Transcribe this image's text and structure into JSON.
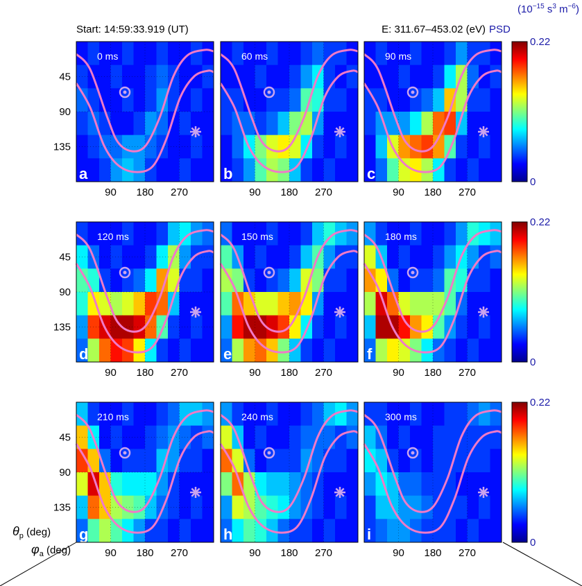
{
  "figure": {
    "start_label": "Start: 14:59:33.919 (UT)",
    "energy_label": "E: 311.67–453.02 (eV)",
    "psd_label": "PSD",
    "units_label": {
      "open": "(10",
      "exp1": "−15",
      "mid": " s",
      "exp2": "3",
      "mid2": " m",
      "exp3": "−6",
      "close": ")"
    },
    "y_axis_label": {
      "symbol": "θ",
      "sub": "p",
      "unit": " (deg)"
    },
    "x_axis_label": {
      "symbol": "φ",
      "sub": "a",
      "unit": " (deg)"
    }
  },
  "chart_data": [
    {
      "type": "heatmap",
      "panel": "a",
      "time": "0 ms",
      "xlim": [
        0,
        360
      ],
      "ylim": [
        0,
        180
      ],
      "xticks": [
        90,
        180,
        270
      ],
      "yticks": [
        45,
        90,
        135
      ],
      "clim": [
        0,
        0.22
      ],
      "cticks": [],
      "z": [
        [
          0.03,
          0.04,
          0.03,
          0.03,
          0.04,
          0.03,
          0.03,
          0.04,
          0.03,
          0.03,
          0.04,
          0.03
        ],
        [
          0.04,
          0.03,
          0.03,
          0.04,
          0.03,
          0.03,
          0.04,
          0.05,
          0.04,
          0.03,
          0.03,
          0.04
        ],
        [
          0.05,
          0.04,
          0.03,
          0.03,
          0.04,
          0.03,
          0.04,
          0.06,
          0.04,
          0.03,
          0.04,
          0.03
        ],
        [
          0.04,
          0.05,
          0.04,
          0.03,
          0.03,
          0.04,
          0.06,
          0.05,
          0.03,
          0.04,
          0.03,
          0.03
        ],
        [
          0.03,
          0.04,
          0.05,
          0.05,
          0.06,
          0.06,
          0.05,
          0.04,
          0.03,
          0.03,
          0.04,
          0.03
        ],
        [
          0.03,
          0.03,
          0.04,
          0.06,
          0.07,
          0.06,
          0.04,
          0.03,
          0.03,
          0.04,
          0.03,
          0.03
        ]
      ]
    },
    {
      "type": "heatmap",
      "panel": "b",
      "time": "60 ms",
      "xlim": [
        0,
        360
      ],
      "ylim": [
        0,
        180
      ],
      "xticks": [
        90,
        180,
        270
      ],
      "yticks": [],
      "clim": [
        0,
        0.22
      ],
      "cticks": [],
      "z": [
        [
          0.03,
          0.04,
          0.03,
          0.03,
          0.04,
          0.03,
          0.03,
          0.04,
          0.05,
          0.04,
          0.04,
          0.03
        ],
        [
          0.03,
          0.03,
          0.03,
          0.04,
          0.03,
          0.03,
          0.04,
          0.06,
          0.08,
          0.04,
          0.03,
          0.04
        ],
        [
          0.04,
          0.04,
          0.03,
          0.03,
          0.04,
          0.04,
          0.05,
          0.1,
          0.09,
          0.04,
          0.04,
          0.03
        ],
        [
          0.04,
          0.05,
          0.05,
          0.04,
          0.05,
          0.07,
          0.11,
          0.12,
          0.06,
          0.03,
          0.03,
          0.03
        ],
        [
          0.03,
          0.05,
          0.08,
          0.11,
          0.13,
          0.14,
          0.13,
          0.08,
          0.04,
          0.03,
          0.04,
          0.03
        ],
        [
          0.03,
          0.04,
          0.06,
          0.1,
          0.12,
          0.11,
          0.07,
          0.04,
          0.03,
          0.04,
          0.03,
          0.03
        ]
      ]
    },
    {
      "type": "heatmap",
      "panel": "c",
      "time": "90 ms",
      "xlim": [
        0,
        360
      ],
      "ylim": [
        0,
        180
      ],
      "xticks": [
        90,
        180,
        270
      ],
      "yticks": [],
      "clim": [
        0,
        0.22
      ],
      "cticks": [
        0,
        0.22
      ],
      "z": [
        [
          0.03,
          0.04,
          0.03,
          0.03,
          0.04,
          0.03,
          0.03,
          0.04,
          0.06,
          0.04,
          0.04,
          0.03
        ],
        [
          0.03,
          0.03,
          0.03,
          0.04,
          0.03,
          0.03,
          0.04,
          0.08,
          0.12,
          0.05,
          0.03,
          0.04
        ],
        [
          0.04,
          0.04,
          0.03,
          0.03,
          0.04,
          0.05,
          0.07,
          0.15,
          0.12,
          0.04,
          0.04,
          0.03
        ],
        [
          0.04,
          0.06,
          0.06,
          0.06,
          0.08,
          0.12,
          0.17,
          0.18,
          0.07,
          0.03,
          0.03,
          0.03
        ],
        [
          0.03,
          0.07,
          0.13,
          0.16,
          0.17,
          0.18,
          0.16,
          0.1,
          0.04,
          0.03,
          0.04,
          0.03
        ],
        [
          0.03,
          0.05,
          0.1,
          0.13,
          0.14,
          0.12,
          0.08,
          0.04,
          0.03,
          0.04,
          0.03,
          0.03
        ]
      ]
    },
    {
      "type": "heatmap",
      "panel": "d",
      "time": "120 ms",
      "xlim": [
        0,
        360
      ],
      "ylim": [
        0,
        180
      ],
      "xticks": [
        90,
        180,
        270
      ],
      "yticks": [
        45,
        90,
        135
      ],
      "clim": [
        0,
        0.22
      ],
      "cticks": [],
      "z": [
        [
          0.04,
          0.03,
          0.03,
          0.03,
          0.04,
          0.03,
          0.03,
          0.04,
          0.07,
          0.08,
          0.06,
          0.05
        ],
        [
          0.08,
          0.05,
          0.03,
          0.04,
          0.03,
          0.03,
          0.04,
          0.08,
          0.12,
          0.06,
          0.04,
          0.04
        ],
        [
          0.1,
          0.09,
          0.04,
          0.03,
          0.04,
          0.05,
          0.08,
          0.16,
          0.13,
          0.04,
          0.04,
          0.03
        ],
        [
          0.09,
          0.14,
          0.13,
          0.12,
          0.13,
          0.15,
          0.18,
          0.17,
          0.07,
          0.03,
          0.03,
          0.03
        ],
        [
          0.06,
          0.18,
          0.2,
          0.21,
          0.21,
          0.2,
          0.17,
          0.1,
          0.04,
          0.03,
          0.04,
          0.03
        ],
        [
          0.05,
          0.12,
          0.17,
          0.19,
          0.18,
          0.14,
          0.08,
          0.04,
          0.03,
          0.04,
          0.03,
          0.03
        ]
      ]
    },
    {
      "type": "heatmap",
      "panel": "e",
      "time": "150 ms",
      "xlim": [
        0,
        360
      ],
      "ylim": [
        0,
        180
      ],
      "xticks": [
        90,
        180,
        270
      ],
      "yticks": [],
      "clim": [
        0,
        0.22
      ],
      "cticks": [],
      "z": [
        [
          0.05,
          0.03,
          0.03,
          0.03,
          0.04,
          0.03,
          0.03,
          0.04,
          0.07,
          0.09,
          0.07,
          0.06
        ],
        [
          0.1,
          0.06,
          0.03,
          0.04,
          0.03,
          0.03,
          0.04,
          0.07,
          0.1,
          0.06,
          0.04,
          0.04
        ],
        [
          0.12,
          0.11,
          0.04,
          0.03,
          0.04,
          0.05,
          0.07,
          0.13,
          0.11,
          0.04,
          0.04,
          0.03
        ],
        [
          0.1,
          0.17,
          0.15,
          0.13,
          0.13,
          0.15,
          0.16,
          0.14,
          0.06,
          0.03,
          0.03,
          0.03
        ],
        [
          0.06,
          0.19,
          0.21,
          0.21,
          0.2,
          0.18,
          0.14,
          0.08,
          0.04,
          0.03,
          0.04,
          0.03
        ],
        [
          0.05,
          0.12,
          0.16,
          0.17,
          0.15,
          0.11,
          0.07,
          0.04,
          0.03,
          0.04,
          0.03,
          0.03
        ]
      ]
    },
    {
      "type": "heatmap",
      "panel": "f",
      "time": "180 ms",
      "xlim": [
        0,
        360
      ],
      "ylim": [
        0,
        180
      ],
      "xticks": [
        90,
        180,
        270
      ],
      "yticks": [],
      "clim": [
        0,
        0.22
      ],
      "cticks": [
        0,
        0.22
      ],
      "z": [
        [
          0.06,
          0.04,
          0.03,
          0.03,
          0.04,
          0.03,
          0.03,
          0.04,
          0.06,
          0.09,
          0.08,
          0.07
        ],
        [
          0.13,
          0.07,
          0.03,
          0.04,
          0.03,
          0.03,
          0.04,
          0.06,
          0.08,
          0.06,
          0.04,
          0.05
        ],
        [
          0.16,
          0.14,
          0.05,
          0.03,
          0.04,
          0.04,
          0.05,
          0.1,
          0.09,
          0.04,
          0.04,
          0.03
        ],
        [
          0.12,
          0.2,
          0.17,
          0.13,
          0.12,
          0.12,
          0.12,
          0.1,
          0.05,
          0.03,
          0.03,
          0.03
        ],
        [
          0.07,
          0.21,
          0.21,
          0.19,
          0.16,
          0.14,
          0.1,
          0.06,
          0.04,
          0.03,
          0.04,
          0.03
        ],
        [
          0.05,
          0.12,
          0.14,
          0.13,
          0.11,
          0.08,
          0.05,
          0.04,
          0.03,
          0.04,
          0.03,
          0.03
        ]
      ]
    },
    {
      "type": "heatmap",
      "panel": "g",
      "time": "210 ms",
      "xlim": [
        0,
        360
      ],
      "ylim": [
        0,
        180
      ],
      "xticks": [
        90,
        180,
        270
      ],
      "yticks": [
        45,
        90,
        135
      ],
      "clim": [
        0,
        0.22
      ],
      "cticks": [],
      "z": [
        [
          0.07,
          0.04,
          0.03,
          0.03,
          0.04,
          0.03,
          0.03,
          0.04,
          0.05,
          0.07,
          0.07,
          0.06
        ],
        [
          0.15,
          0.08,
          0.03,
          0.04,
          0.03,
          0.03,
          0.04,
          0.05,
          0.06,
          0.05,
          0.04,
          0.05
        ],
        [
          0.18,
          0.15,
          0.05,
          0.03,
          0.04,
          0.04,
          0.04,
          0.07,
          0.06,
          0.04,
          0.04,
          0.03
        ],
        [
          0.13,
          0.2,
          0.15,
          0.09,
          0.08,
          0.08,
          0.08,
          0.06,
          0.04,
          0.03,
          0.03,
          0.03
        ],
        [
          0.07,
          0.17,
          0.15,
          0.12,
          0.11,
          0.1,
          0.07,
          0.05,
          0.04,
          0.03,
          0.04,
          0.03
        ],
        [
          0.05,
          0.1,
          0.12,
          0.1,
          0.08,
          0.06,
          0.04,
          0.04,
          0.03,
          0.04,
          0.03,
          0.03
        ]
      ]
    },
    {
      "type": "heatmap",
      "panel": "h",
      "time": "240 ms",
      "xlim": [
        0,
        360
      ],
      "ylim": [
        0,
        180
      ],
      "xticks": [
        90,
        180,
        270
      ],
      "yticks": [],
      "clim": [
        0,
        0.22
      ],
      "cticks": [],
      "z": [
        [
          0.06,
          0.04,
          0.03,
          0.03,
          0.04,
          0.03,
          0.03,
          0.04,
          0.05,
          0.07,
          0.08,
          0.06
        ],
        [
          0.13,
          0.07,
          0.03,
          0.04,
          0.03,
          0.03,
          0.04,
          0.05,
          0.05,
          0.05,
          0.04,
          0.05
        ],
        [
          0.17,
          0.13,
          0.05,
          0.03,
          0.04,
          0.04,
          0.04,
          0.06,
          0.05,
          0.04,
          0.04,
          0.03
        ],
        [
          0.11,
          0.17,
          0.12,
          0.08,
          0.07,
          0.07,
          0.06,
          0.05,
          0.04,
          0.03,
          0.03,
          0.03
        ],
        [
          0.06,
          0.13,
          0.12,
          0.1,
          0.09,
          0.08,
          0.06,
          0.05,
          0.04,
          0.03,
          0.04,
          0.03
        ],
        [
          0.05,
          0.08,
          0.1,
          0.09,
          0.07,
          0.05,
          0.04,
          0.04,
          0.03,
          0.04,
          0.03,
          0.03
        ]
      ]
    },
    {
      "type": "heatmap",
      "panel": "i",
      "time": "300 ms",
      "xlim": [
        0,
        360
      ],
      "ylim": [
        0,
        180
      ],
      "xticks": [
        90,
        180,
        270
      ],
      "yticks": [],
      "clim": [
        0,
        0.22
      ],
      "cticks": [
        0,
        0.22
      ],
      "z": [
        [
          0.04,
          0.04,
          0.03,
          0.03,
          0.04,
          0.03,
          0.03,
          0.04,
          0.04,
          0.05,
          0.06,
          0.05
        ],
        [
          0.07,
          0.05,
          0.03,
          0.04,
          0.03,
          0.03,
          0.04,
          0.04,
          0.04,
          0.04,
          0.04,
          0.04
        ],
        [
          0.08,
          0.07,
          0.04,
          0.03,
          0.04,
          0.03,
          0.04,
          0.04,
          0.04,
          0.04,
          0.04,
          0.03
        ],
        [
          0.06,
          0.08,
          0.07,
          0.05,
          0.05,
          0.04,
          0.04,
          0.04,
          0.03,
          0.03,
          0.03,
          0.03
        ],
        [
          0.04,
          0.07,
          0.07,
          0.06,
          0.06,
          0.05,
          0.04,
          0.04,
          0.04,
          0.03,
          0.04,
          0.03
        ],
        [
          0.04,
          0.05,
          0.06,
          0.06,
          0.05,
          0.04,
          0.04,
          0.04,
          0.03,
          0.04,
          0.03,
          0.03
        ]
      ]
    }
  ]
}
